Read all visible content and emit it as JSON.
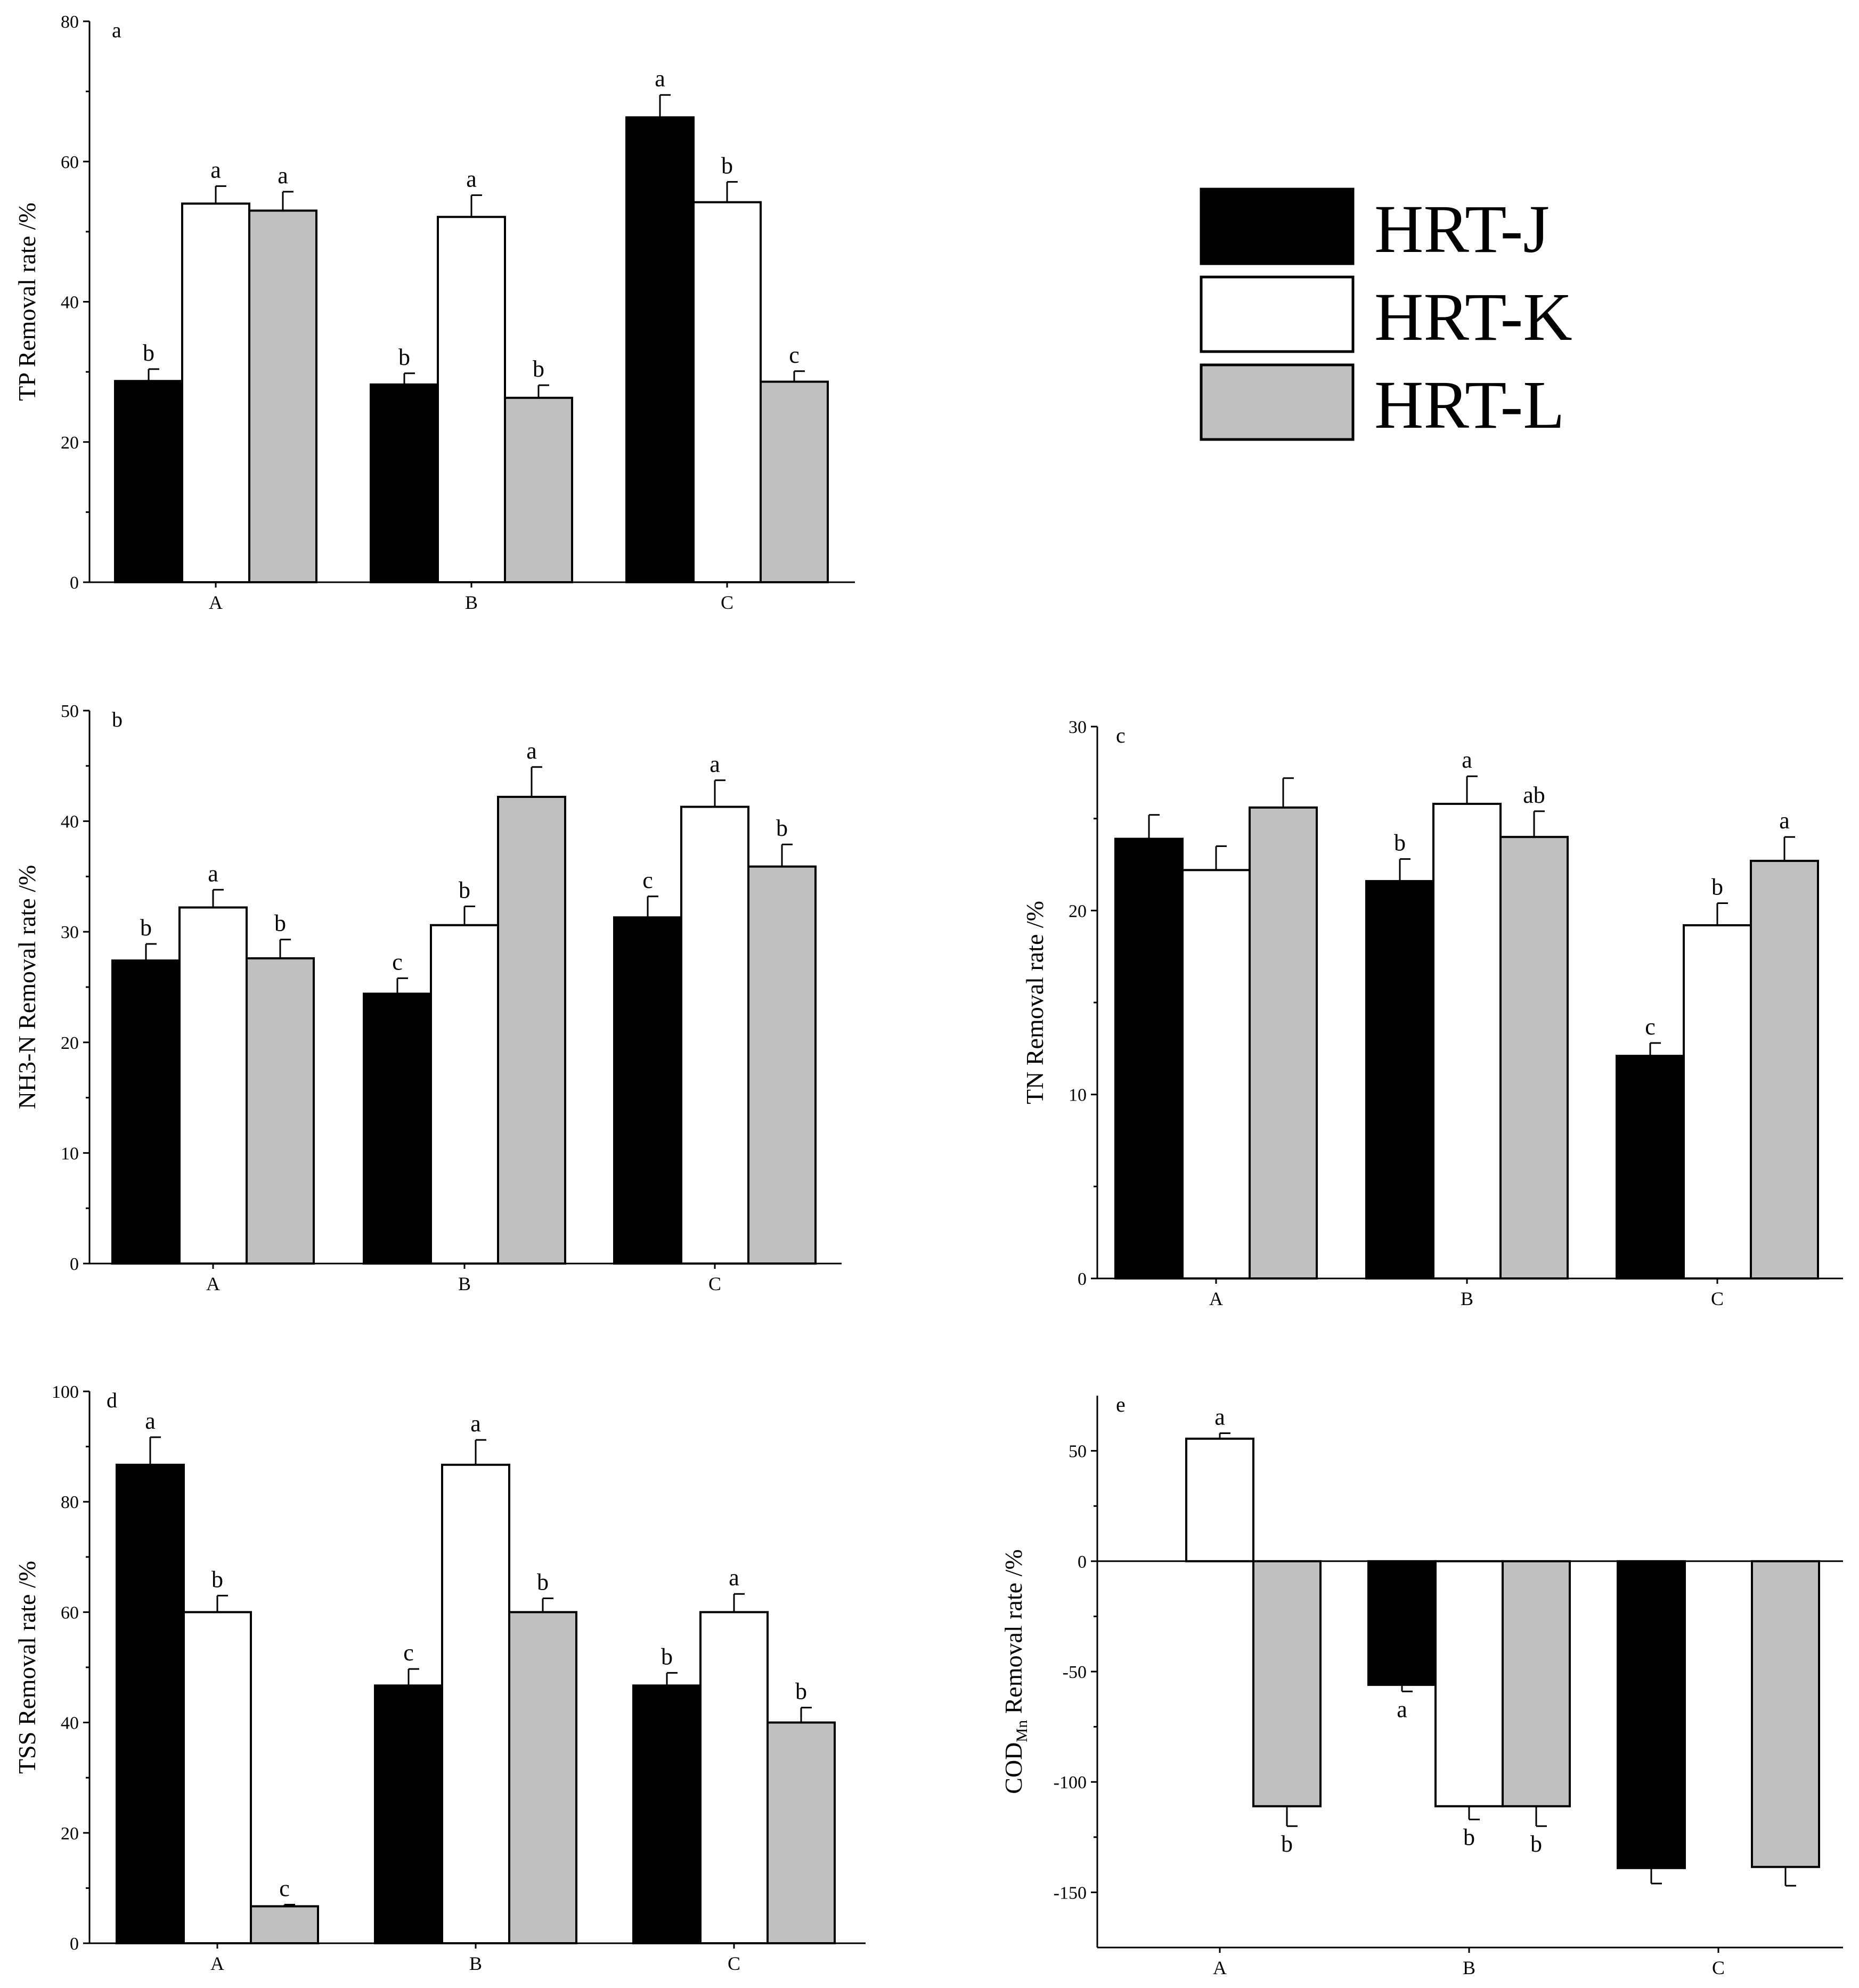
{
  "legend": {
    "items": [
      {
        "label": "HRT-J",
        "color": "#000000"
      },
      {
        "label": "HRT-K",
        "color": "#ffffff"
      },
      {
        "label": "HRT-L",
        "color": "#c0c0c0"
      }
    ]
  },
  "chart_data": [
    {
      "type": "bar",
      "panel": "a",
      "ylabel": "TP Removal rate /%",
      "ylim": [
        0,
        80
      ],
      "yticks": [
        0,
        20,
        40,
        60,
        80
      ],
      "categories": [
        "A",
        "B",
        "C"
      ],
      "series": [
        {
          "name": "HRT-J",
          "values": [
            28.7,
            28.2,
            66.3
          ],
          "errors": [
            1.7,
            1.6,
            3.2
          ],
          "labels": [
            "b",
            "b",
            "a"
          ]
        },
        {
          "name": "HRT-K",
          "values": [
            54.0,
            52.1,
            54.2
          ],
          "errors": [
            2.5,
            3.1,
            2.9
          ],
          "labels": [
            "a",
            "a",
            "b"
          ]
        },
        {
          "name": "HRT-L",
          "values": [
            53.0,
            26.3,
            28.6
          ],
          "errors": [
            2.7,
            1.8,
            1.5
          ],
          "labels": [
            "a",
            "b",
            "c"
          ]
        }
      ]
    },
    {
      "type": "bar",
      "panel": "b",
      "ylabel": "NH3-N Removal rate /%",
      "ylim": [
        0,
        50
      ],
      "yticks": [
        0,
        10,
        20,
        30,
        40,
        50
      ],
      "categories": [
        "A",
        "B",
        "C"
      ],
      "series": [
        {
          "name": "HRT-J",
          "values": [
            27.4,
            24.4,
            31.3
          ],
          "errors": [
            1.5,
            1.4,
            1.9
          ],
          "labels": [
            "b",
            "c",
            "c"
          ]
        },
        {
          "name": "HRT-K",
          "values": [
            32.2,
            30.6,
            41.3
          ],
          "errors": [
            1.6,
            1.7,
            2.4
          ],
          "labels": [
            "a",
            "b",
            "a"
          ]
        },
        {
          "name": "HRT-L",
          "values": [
            27.6,
            42.2,
            35.9
          ],
          "errors": [
            1.7,
            2.7,
            2.0
          ],
          "labels": [
            "b",
            "a",
            "b"
          ]
        }
      ]
    },
    {
      "type": "bar",
      "panel": "c",
      "ylabel": "TN Removal rate /%",
      "ylim": [
        0,
        30
      ],
      "yticks": [
        0,
        10,
        20,
        30
      ],
      "categories": [
        "A",
        "B",
        "C"
      ],
      "series": [
        {
          "name": "HRT-J",
          "values": [
            23.9,
            21.6,
            12.1
          ],
          "errors": [
            1.3,
            1.2,
            0.7
          ],
          "labels": [
            "",
            "b",
            "c"
          ]
        },
        {
          "name": "HRT-K",
          "values": [
            22.2,
            25.8,
            19.2
          ],
          "errors": [
            1.3,
            1.5,
            1.2
          ],
          "labels": [
            "",
            "a",
            "b"
          ]
        },
        {
          "name": "HRT-L",
          "values": [
            25.6,
            24.0,
            22.7
          ],
          "errors": [
            1.6,
            1.4,
            1.3
          ],
          "labels": [
            "",
            "ab",
            "a"
          ]
        }
      ]
    },
    {
      "type": "bar",
      "panel": "d",
      "ylabel": "TSS Removal rate /%",
      "ylim": [
        0,
        100
      ],
      "yticks": [
        0,
        20,
        40,
        60,
        80,
        100
      ],
      "categories": [
        "A",
        "B",
        "C"
      ],
      "series": [
        {
          "name": "HRT-J",
          "values": [
            86.7,
            46.7,
            46.7
          ],
          "errors": [
            5.0,
            3.0,
            2.3
          ],
          "labels": [
            "a",
            "c",
            "b"
          ]
        },
        {
          "name": "HRT-K",
          "values": [
            60.0,
            86.7,
            60.0
          ],
          "errors": [
            3.0,
            4.5,
            3.3
          ],
          "labels": [
            "b",
            "a",
            "a"
          ]
        },
        {
          "name": "HRT-L",
          "values": [
            6.7,
            60.0,
            40.0
          ],
          "errors": [
            0.3,
            2.5,
            2.7
          ],
          "labels": [
            "c",
            "b",
            "b"
          ]
        }
      ]
    },
    {
      "type": "bar",
      "panel": "e",
      "ylabel": "CODMn Removal rate /%",
      "ylabel_main": "COD",
      "ylabel_sub": "Mn",
      "ylabel_tail": " Removal rate /%",
      "ylim": [
        -175,
        75
      ],
      "yticks": [
        -150,
        -100,
        -50,
        0,
        50
      ],
      "categories": [
        "A",
        "B",
        "C"
      ],
      "series": [
        {
          "name": "HRT-J",
          "values": [
            0,
            -56,
            -139
          ],
          "errors": [
            0,
            3,
            7
          ],
          "labels": [
            "",
            "a",
            ""
          ]
        },
        {
          "name": "HRT-K",
          "values": [
            55.5,
            -111,
            0
          ],
          "errors": [
            2.5,
            6,
            0
          ],
          "labels": [
            "a",
            "b",
            ""
          ]
        },
        {
          "name": "HRT-L",
          "values": [
            -111,
            -111,
            -138.5
          ],
          "errors": [
            9,
            9,
            8.5
          ],
          "labels": [
            "b",
            "b",
            ""
          ]
        }
      ]
    }
  ]
}
